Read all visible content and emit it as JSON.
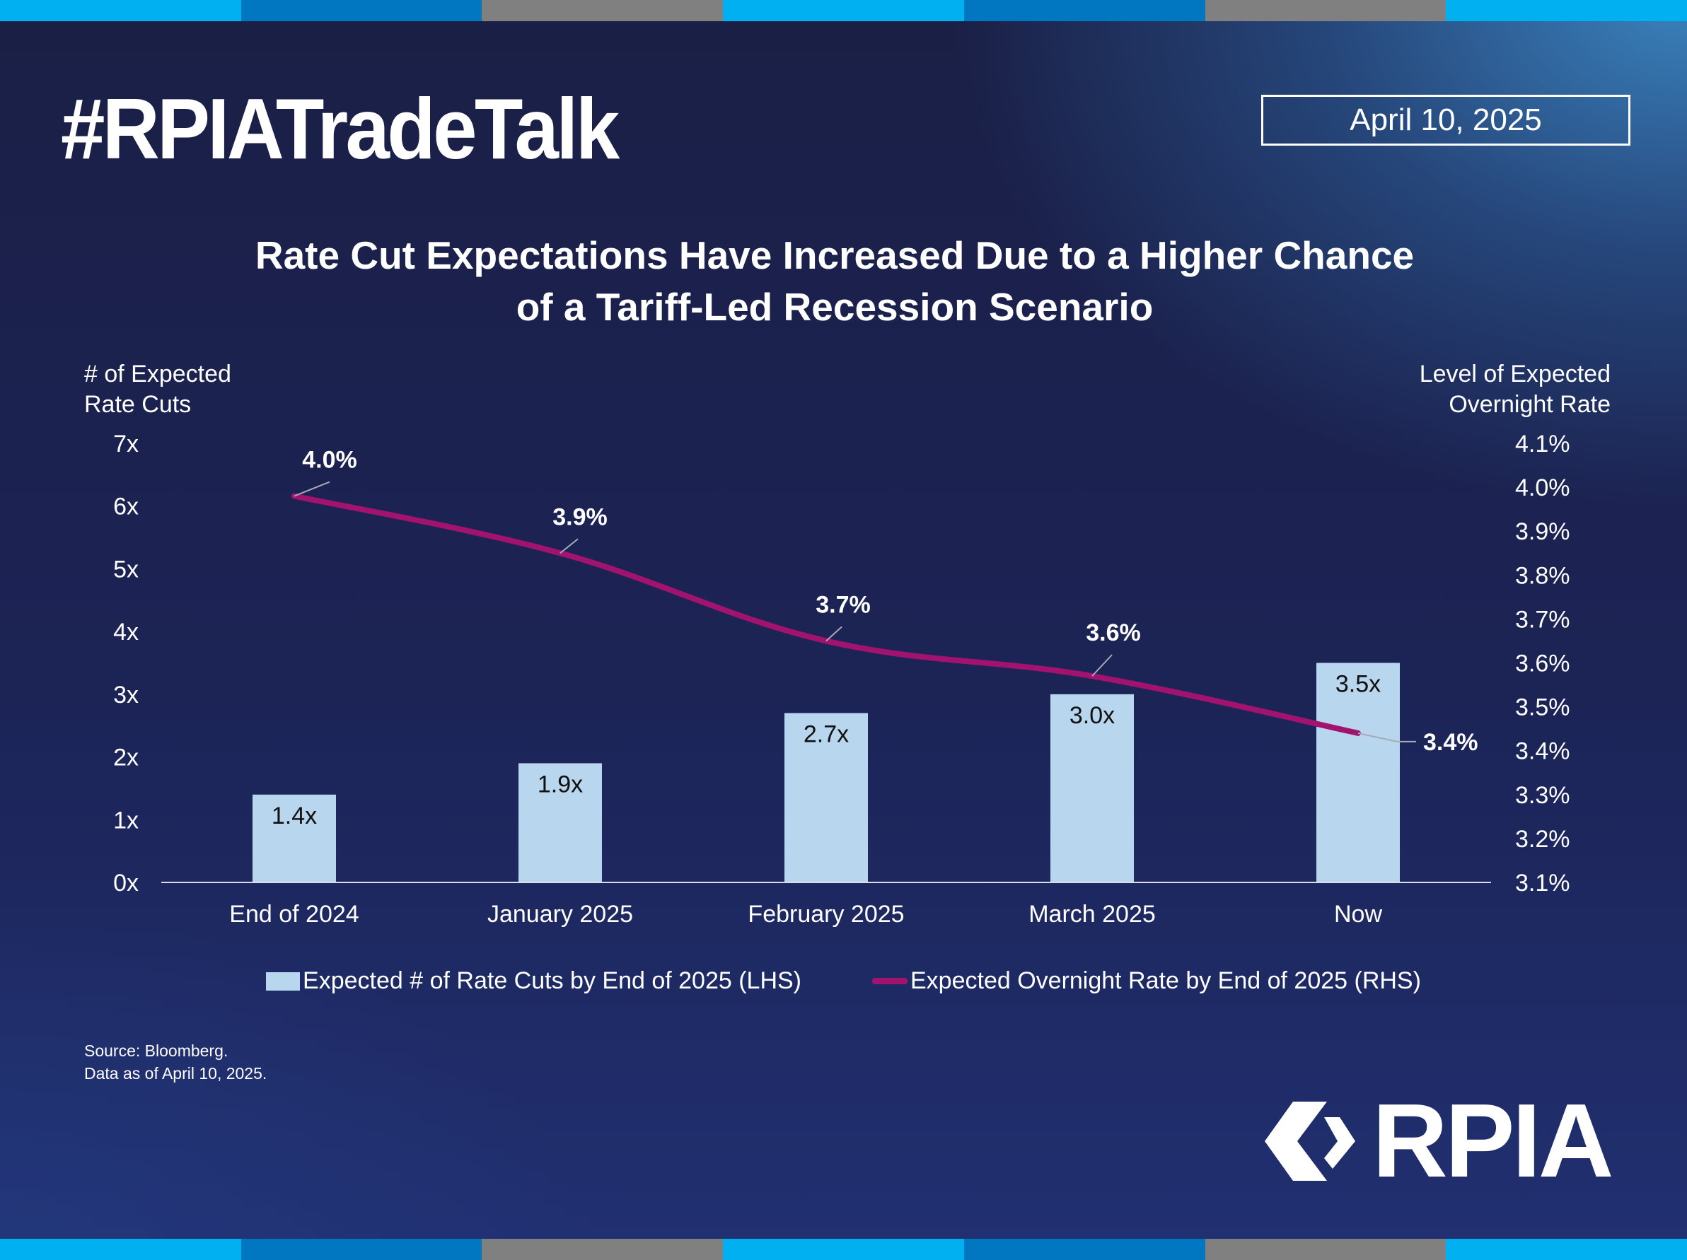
{
  "header": {
    "hashtag": "#RPIATradeTalk",
    "date": "April 10, 2025"
  },
  "brand": {
    "logo_text": "RPIA",
    "stripe_colors": [
      "#00b0f0",
      "#0077c0",
      "#808080",
      "#00b0f0",
      "#0077c0",
      "#808080",
      "#00b0f0"
    ]
  },
  "chart_data": {
    "type": "bar",
    "title_lines": [
      "Rate Cut Expectations Have Increased Due to a Higher Chance",
      "of a Tariff-Led Recession Scenario"
    ],
    "categories": [
      "End of 2024",
      "January 2025",
      "February 2025",
      "March 2025",
      "Now"
    ],
    "left_axis": {
      "title_lines": [
        "# of Expected",
        "Rate Cuts"
      ],
      "range": [
        0,
        7
      ],
      "ticks": [
        0,
        1,
        2,
        3,
        4,
        5,
        6,
        7
      ],
      "tick_labels": [
        "0x",
        "1x",
        "2x",
        "3x",
        "4x",
        "5x",
        "6x",
        "7x"
      ]
    },
    "right_axis": {
      "title_lines": [
        "Level of Expected",
        "Overnight Rate"
      ],
      "range": [
        3.1,
        4.1
      ],
      "ticks": [
        3.1,
        3.2,
        3.3,
        3.4,
        3.5,
        3.6,
        3.7,
        3.8,
        3.9,
        4.0,
        4.1
      ],
      "tick_labels": [
        "3.1%",
        "3.2%",
        "3.3%",
        "3.4%",
        "3.5%",
        "3.6%",
        "3.7%",
        "3.8%",
        "3.9%",
        "4.0%",
        "4.1%"
      ]
    },
    "series": [
      {
        "name": "Expected # of Rate Cuts by End of 2025 (LHS)",
        "type": "bar",
        "axis": "left",
        "color": "#b8d6ed",
        "values": [
          1.4,
          1.9,
          2.7,
          3.0,
          3.5
        ],
        "data_labels": [
          "1.4x",
          "1.9x",
          "2.7x",
          "3.0x",
          "3.5x"
        ]
      },
      {
        "name": "Expected Overnight Rate by End of 2025 (RHS)",
        "type": "line",
        "axis": "right",
        "color": "#a2136f",
        "values": [
          3.98,
          3.85,
          3.65,
          3.57,
          3.44
        ],
        "data_labels": [
          "4.0%",
          "3.9%",
          "3.7%",
          "3.6%",
          "3.4%"
        ]
      }
    ],
    "legend_position": "bottom",
    "grid": false
  },
  "footer": {
    "source_lines": [
      "Source: Bloomberg.",
      "Data as of April 10, 2025."
    ]
  }
}
